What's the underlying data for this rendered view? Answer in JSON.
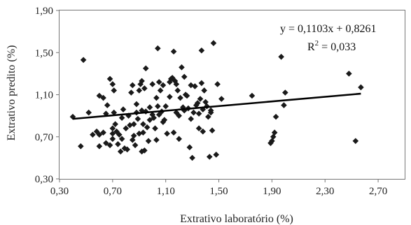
{
  "chart_data": {
    "type": "scatter",
    "xlabel": "Extrativo laboratório (%)",
    "ylabel": "Extrativo predito (%)",
    "xlim": [
      0.3,
      2.9
    ],
    "ylim": [
      0.3,
      1.9
    ],
    "x_ticks": [
      "0,30",
      "0,70",
      "1,10",
      "1,50",
      "1,90",
      "2,30",
      "2,70"
    ],
    "x_tick_values": [
      0.3,
      0.7,
      1.1,
      1.5,
      1.9,
      2.3,
      2.7
    ],
    "y_ticks": [
      "0,30",
      "0,70",
      "1,10",
      "1,50",
      "1,90"
    ],
    "y_tick_values": [
      0.3,
      0.7,
      1.1,
      1.5,
      1.9
    ],
    "grid": false,
    "marker": "diamond",
    "marker_color": "#1a1a1a",
    "trendline": {
      "slope": 0.1103,
      "intercept": 0.8261,
      "x_range": [
        0.4,
        2.57
      ],
      "color": "#000000",
      "equation": "y = 0,1103x + 0,8261",
      "r2_prefix": "R",
      "r2_exponent": "2",
      "r2_suffix": " = 0,033"
    },
    "points": [
      [
        0.4,
        0.89
      ],
      [
        0.46,
        0.61
      ],
      [
        0.48,
        1.43
      ],
      [
        0.52,
        0.93
      ],
      [
        0.55,
        0.72
      ],
      [
        0.58,
        0.75
      ],
      [
        0.6,
        0.61
      ],
      [
        0.6,
        0.72
      ],
      [
        0.6,
        1.09
      ],
      [
        0.63,
        0.74
      ],
      [
        0.63,
        1.07
      ],
      [
        0.65,
        0.64
      ],
      [
        0.65,
        0.92
      ],
      [
        0.66,
        1.0
      ],
      [
        0.68,
        0.62
      ],
      [
        0.68,
        1.25
      ],
      [
        0.7,
        0.68
      ],
      [
        0.7,
        0.73
      ],
      [
        0.7,
        0.78
      ],
      [
        0.7,
        1.2
      ],
      [
        0.71,
        1.14
      ],
      [
        0.71,
        0.93
      ],
      [
        0.72,
        0.82
      ],
      [
        0.73,
        0.75
      ],
      [
        0.74,
        0.63
      ],
      [
        0.75,
        0.72
      ],
      [
        0.76,
        0.56
      ],
      [
        0.77,
        0.68
      ],
      [
        0.77,
        0.88
      ],
      [
        0.78,
        0.96
      ],
      [
        0.79,
        0.59
      ],
      [
        0.8,
        0.78
      ],
      [
        0.81,
        0.58
      ],
      [
        0.82,
        0.9
      ],
      [
        0.83,
        0.81
      ],
      [
        0.84,
        1.12
      ],
      [
        0.85,
        0.67
      ],
      [
        0.85,
        1.19
      ],
      [
        0.86,
        0.71
      ],
      [
        0.86,
        0.82
      ],
      [
        0.87,
        0.62
      ],
      [
        0.88,
        0.93
      ],
      [
        0.88,
        1.01
      ],
      [
        0.89,
        0.87
      ],
      [
        0.9,
        1.14
      ],
      [
        0.9,
        0.73
      ],
      [
        0.91,
        1.2
      ],
      [
        0.92,
        0.56
      ],
      [
        0.92,
        0.95
      ],
      [
        0.92,
        1.23
      ],
      [
        0.93,
        0.74
      ],
      [
        0.93,
        0.82
      ],
      [
        0.94,
        1.16
      ],
      [
        0.94,
        0.57
      ],
      [
        0.95,
        1.35
      ],
      [
        0.95,
        0.94
      ],
      [
        0.96,
        0.79
      ],
      [
        0.97,
        0.66
      ],
      [
        0.98,
        0.98
      ],
      [
        0.98,
        0.86
      ],
      [
        1.0,
        0.91
      ],
      [
        1.0,
        1.2
      ],
      [
        1.01,
        0.88
      ],
      [
        1.02,
        0.78
      ],
      [
        1.03,
        0.67
      ],
      [
        1.03,
        1.07
      ],
      [
        1.04,
        1.54
      ],
      [
        1.04,
        0.99
      ],
      [
        1.05,
        1.22
      ],
      [
        1.05,
        0.91
      ],
      [
        1.06,
        1.14
      ],
      [
        1.07,
        0.94
      ],
      [
        1.08,
        0.84
      ],
      [
        1.08,
        1.19
      ],
      [
        1.09,
        0.86
      ],
      [
        1.1,
        0.99
      ],
      [
        1.11,
        0.73
      ],
      [
        1.13,
        1.22
      ],
      [
        1.13,
        1.08
      ],
      [
        1.14,
        1.25
      ],
      [
        1.15,
        1.26
      ],
      [
        1.16,
        0.74
      ],
      [
        1.16,
        1.51
      ],
      [
        1.17,
        1.23
      ],
      [
        1.18,
        0.93
      ],
      [
        1.18,
        1.2
      ],
      [
        1.19,
        1.14
      ],
      [
        1.2,
        0.68
      ],
      [
        1.2,
        0.9
      ],
      [
        1.21,
        1.07
      ],
      [
        1.22,
        1.36
      ],
      [
        1.23,
        0.98
      ],
      [
        1.24,
        0.95
      ],
      [
        1.24,
        1.27
      ],
      [
        1.25,
        1.1
      ],
      [
        1.26,
        1.09
      ],
      [
        1.27,
        0.97
      ],
      [
        1.28,
        0.6
      ],
      [
        1.29,
        0.87
      ],
      [
        1.29,
        1.19
      ],
      [
        1.3,
        0.5
      ],
      [
        1.31,
        0.93
      ],
      [
        1.32,
        1.18
      ],
      [
        1.33,
        1.0
      ],
      [
        1.34,
        1.02
      ],
      [
        1.35,
        0.78
      ],
      [
        1.35,
        0.92
      ],
      [
        1.36,
        1.06
      ],
      [
        1.37,
        1.52
      ],
      [
        1.37,
        1.21
      ],
      [
        1.38,
        0.96
      ],
      [
        1.38,
        0.75
      ],
      [
        1.39,
        1.14
      ],
      [
        1.4,
        1.03
      ],
      [
        1.41,
        0.99
      ],
      [
        1.42,
        0.89
      ],
      [
        1.43,
        0.51
      ],
      [
        1.44,
        0.93
      ],
      [
        1.44,
        0.95
      ],
      [
        1.45,
        0.76
      ],
      [
        1.46,
        1.59
      ],
      [
        1.48,
        0.53
      ],
      [
        1.49,
        1.2
      ],
      [
        1.52,
        1.06
      ],
      [
        1.75,
        1.09
      ],
      [
        1.89,
        0.64
      ],
      [
        1.9,
        0.66
      ],
      [
        1.91,
        0.7
      ],
      [
        1.92,
        0.74
      ],
      [
        1.93,
        0.89
      ],
      [
        1.97,
        1.46
      ],
      [
        1.99,
        1.0
      ],
      [
        2.0,
        1.12
      ],
      [
        2.48,
        1.3
      ],
      [
        2.53,
        0.66
      ],
      [
        2.57,
        1.17
      ]
    ]
  }
}
